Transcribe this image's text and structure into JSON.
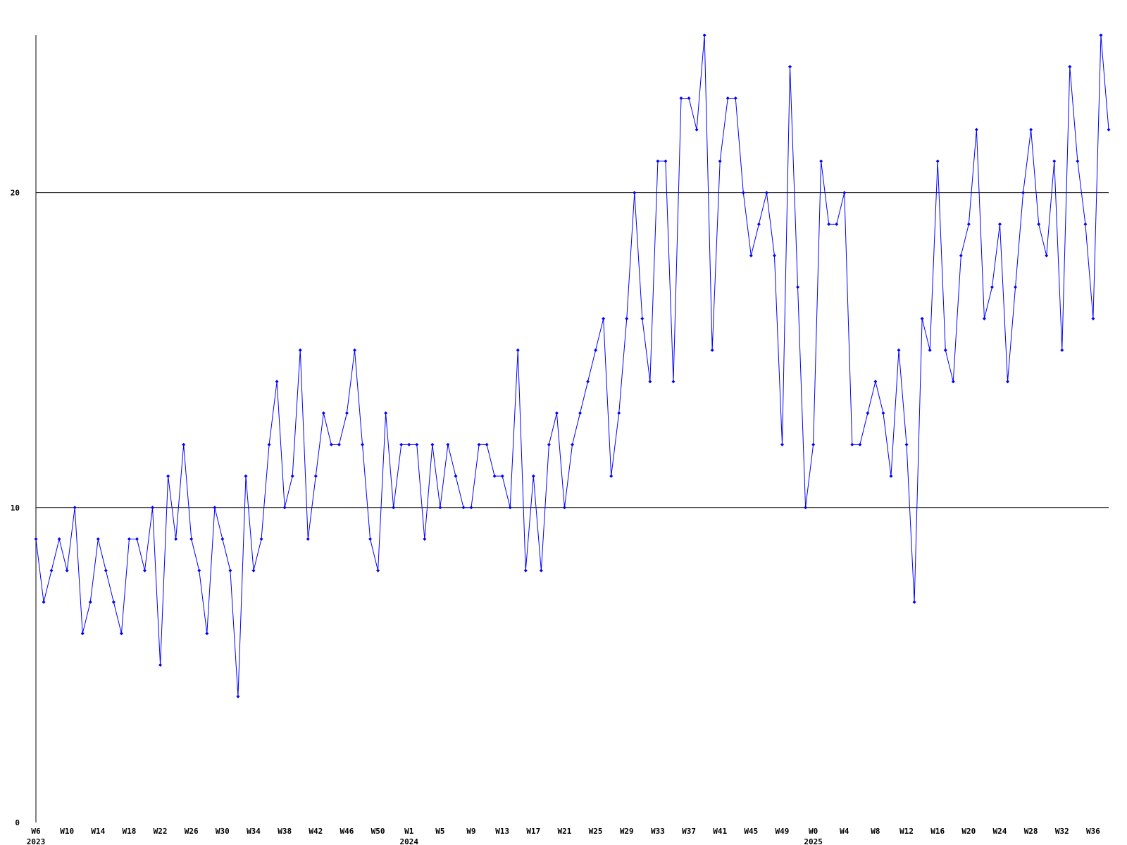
{
  "chart_data": {
    "type": "line",
    "categories": [
      "W6",
      null,
      null,
      null,
      "W10",
      null,
      null,
      null,
      "W14",
      null,
      null,
      null,
      "W18",
      null,
      null,
      null,
      "W22",
      null,
      null,
      null,
      "W26",
      null,
      null,
      null,
      "W30",
      null,
      null,
      null,
      "W34",
      null,
      null,
      null,
      "W38",
      null,
      null,
      null,
      "W42",
      null,
      null,
      null,
      "W46",
      null,
      null,
      null,
      "W50",
      null,
      null,
      null,
      "W1",
      null,
      null,
      null,
      "W5",
      null,
      null,
      null,
      "W9",
      null,
      null,
      null,
      "W13",
      null,
      null,
      null,
      "W17",
      null,
      null,
      null,
      "W21",
      null,
      null,
      null,
      "W25",
      null,
      null,
      null,
      "W29",
      null,
      null,
      null,
      "W33",
      null,
      null,
      null,
      "W37",
      null,
      null,
      null,
      "W41",
      null,
      null,
      null,
      "W45",
      null,
      null,
      null,
      "W49",
      null,
      null,
      null,
      "W0",
      null,
      null,
      null,
      "W4",
      null,
      null,
      null,
      "W8",
      null,
      null,
      null,
      "W12",
      null,
      null,
      null,
      "W16",
      null,
      null,
      null,
      "W20",
      null,
      null,
      null,
      "W24",
      null,
      null,
      null,
      "W28",
      null,
      null,
      null,
      "W32",
      null,
      null,
      null,
      "W36",
      null,
      null
    ],
    "year_labels": [
      {
        "index": 0,
        "label": "2023"
      },
      {
        "index": 48,
        "label": "2024"
      },
      {
        "index": 100,
        "label": "2025"
      }
    ],
    "series": [
      {
        "color": "#0000ff",
        "values": [
          9,
          7,
          8,
          9,
          8,
          10,
          6,
          7,
          9,
          8,
          7,
          6,
          9,
          9,
          8,
          10,
          5,
          11,
          9,
          12,
          9,
          8,
          6,
          10,
          9,
          8,
          4,
          11,
          8,
          9,
          12,
          14,
          10,
          11,
          15,
          9,
          11,
          13,
          12,
          12,
          13,
          15,
          12,
          9,
          8,
          13,
          10,
          12,
          12,
          12,
          9,
          12,
          10,
          12,
          11,
          10,
          10,
          12,
          12,
          11,
          11,
          10,
          15,
          8,
          11,
          8,
          12,
          13,
          10,
          12,
          13,
          14,
          15,
          16,
          11,
          13,
          16,
          20,
          16,
          14,
          21,
          21,
          14,
          23,
          23,
          22,
          25,
          15,
          21,
          23,
          23,
          20,
          18,
          19,
          20,
          18,
          12,
          24,
          17,
          10,
          12,
          21,
          19,
          19,
          20,
          12,
          12,
          13,
          14,
          13,
          11,
          15,
          12,
          7,
          16,
          15,
          21,
          15,
          14,
          18,
          19,
          22,
          16,
          17,
          19,
          14,
          17,
          20,
          22,
          19,
          18,
          21,
          15,
          24,
          21,
          19,
          16,
          25,
          22
        ]
      }
    ],
    "ylim": [
      0,
      25
    ],
    "yticks": [
      0,
      10,
      20
    ],
    "grid": true,
    "grid_color": "#000000"
  }
}
